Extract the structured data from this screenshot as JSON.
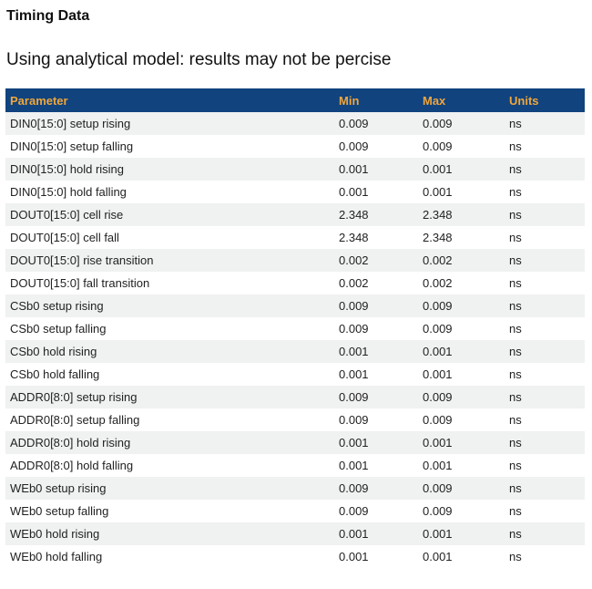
{
  "page": {
    "title": "Timing Data",
    "subtitle": "Using analytical model: results may not be percise"
  },
  "colors": {
    "table_header_bg": "#11437e",
    "table_header_text": "#efa63c",
    "row_alt_bg": "#f0f1f1",
    "row_bg": "#ffffff",
    "body_text": "#222222"
  },
  "table": {
    "columns": [
      "Parameter",
      "Min",
      "Max",
      "Units"
    ],
    "rows": [
      {
        "parameter": "DIN0[15:0] setup rising",
        "min": "0.009",
        "max": "0.009",
        "units": "ns"
      },
      {
        "parameter": "DIN0[15:0] setup falling",
        "min": "0.009",
        "max": "0.009",
        "units": "ns"
      },
      {
        "parameter": "DIN0[15:0] hold rising",
        "min": "0.001",
        "max": "0.001",
        "units": "ns"
      },
      {
        "parameter": "DIN0[15:0] hold falling",
        "min": "0.001",
        "max": "0.001",
        "units": "ns"
      },
      {
        "parameter": "DOUT0[15:0] cell rise",
        "min": "2.348",
        "max": "2.348",
        "units": "ns"
      },
      {
        "parameter": "DOUT0[15:0] cell fall",
        "min": "2.348",
        "max": "2.348",
        "units": "ns"
      },
      {
        "parameter": "DOUT0[15:0] rise transition",
        "min": "0.002",
        "max": "0.002",
        "units": "ns"
      },
      {
        "parameter": "DOUT0[15:0] fall transition",
        "min": "0.002",
        "max": "0.002",
        "units": "ns"
      },
      {
        "parameter": "CSb0 setup rising",
        "min": "0.009",
        "max": "0.009",
        "units": "ns"
      },
      {
        "parameter": "CSb0 setup falling",
        "min": "0.009",
        "max": "0.009",
        "units": "ns"
      },
      {
        "parameter": "CSb0 hold rising",
        "min": "0.001",
        "max": "0.001",
        "units": "ns"
      },
      {
        "parameter": "CSb0 hold falling",
        "min": "0.001",
        "max": "0.001",
        "units": "ns"
      },
      {
        "parameter": "ADDR0[8:0] setup rising",
        "min": "0.009",
        "max": "0.009",
        "units": "ns"
      },
      {
        "parameter": "ADDR0[8:0] setup falling",
        "min": "0.009",
        "max": "0.009",
        "units": "ns"
      },
      {
        "parameter": "ADDR0[8:0] hold rising",
        "min": "0.001",
        "max": "0.001",
        "units": "ns"
      },
      {
        "parameter": "ADDR0[8:0] hold falling",
        "min": "0.001",
        "max": "0.001",
        "units": "ns"
      },
      {
        "parameter": "WEb0 setup rising",
        "min": "0.009",
        "max": "0.009",
        "units": "ns"
      },
      {
        "parameter": "WEb0 setup falling",
        "min": "0.009",
        "max": "0.009",
        "units": "ns"
      },
      {
        "parameter": "WEb0 hold rising",
        "min": "0.001",
        "max": "0.001",
        "units": "ns"
      },
      {
        "parameter": "WEb0 hold falling",
        "min": "0.001",
        "max": "0.001",
        "units": "ns"
      }
    ]
  }
}
